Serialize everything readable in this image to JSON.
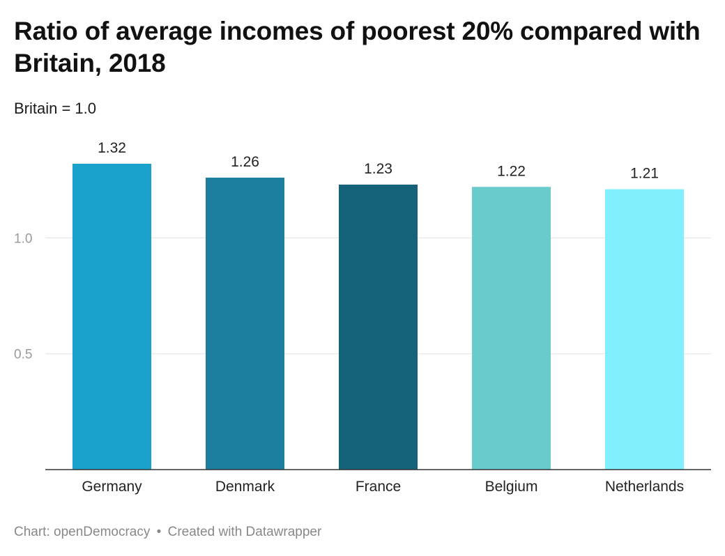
{
  "title": "Ratio of average incomes of poorest 20% compared with Britain, 2018",
  "subtitle": "Britain = 1.0",
  "footer": {
    "source": "Chart: openDemocracy",
    "separator": "•",
    "credit": "Created with Datawrapper"
  },
  "chart_data": {
    "type": "bar",
    "title": "Ratio of average incomes of poorest 20% compared with Britain, 2018",
    "subtitle": "Britain = 1.0",
    "categories": [
      "Germany",
      "Denmark",
      "France",
      "Belgium",
      "Netherlands"
    ],
    "values": [
      1.32,
      1.26,
      1.23,
      1.22,
      1.21
    ],
    "value_labels": [
      "1.32",
      "1.26",
      "1.23",
      "1.22",
      "1.21"
    ],
    "colors": [
      "#1aa2cc",
      "#1d7fa0",
      "#15627b",
      "#69cbcb",
      "#80f0fc"
    ],
    "yticks": [
      0.5,
      1.0
    ],
    "ytick_labels": [
      "0.5",
      "1.0"
    ],
    "ylim": [
      0,
      1.32
    ],
    "xlabel": "",
    "ylabel": "",
    "grid": true,
    "legend": "none"
  }
}
